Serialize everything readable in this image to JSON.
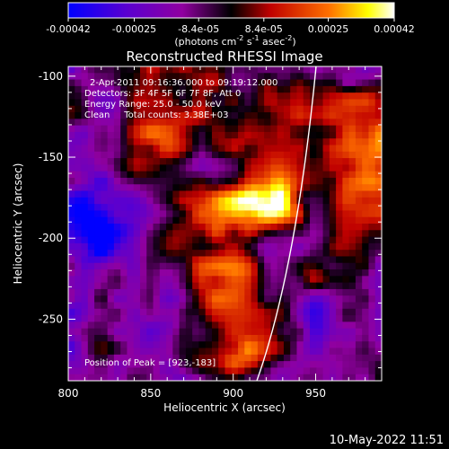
{
  "chart_data": {
    "type": "heatmap",
    "title": "Reconstructed RHESSI Image",
    "xlabel": "Heliocentric X (arcsec)",
    "ylabel": "Heliocentric Y (arcsec)",
    "xlim": [
      800,
      990
    ],
    "ylim": [
      -288,
      -94
    ],
    "x_ticks": [
      "800",
      "850",
      "900",
      "950"
    ],
    "y_ticks": [
      "-100",
      "-150",
      "-200",
      "-250"
    ],
    "colorbar": {
      "range": [
        -0.00042,
        0.00042
      ],
      "ticks": [
        "-0.00042",
        "-0.00025",
        "-8.4e-05",
        "8.4e-05",
        "0.00025",
        "0.00042"
      ],
      "unit_prefix": "(photons cm",
      "unit_exp1": "-2",
      "unit_mid": " s",
      "unit_exp2": "-1",
      "unit_mid2": " asec",
      "unit_exp3": "-2",
      "unit_suffix": ")"
    },
    "info_lines": [
      "2-Apr-2011 09:16:36.000 to 09:19:12.000",
      "Detectors: 3F 4F 5F 6F 7F 8F, Att 0",
      "Energy Range: 25.0 - 50.0 keV",
      "Clean     Total counts: 3.38E+03"
    ],
    "peak_label": "Position of Peak = [923,-183]",
    "peak": [
      923,
      -183
    ],
    "limb": "white solar limb arc crossing from bottom (~915,-288) to top (~963,-94)",
    "colormap": [
      "#0000ff",
      "#5a00d0",
      "#9000a0",
      "#000000",
      "#c00000",
      "#ff7000",
      "#ffff00",
      "#ffffff"
    ],
    "grid": false
  },
  "footer": {
    "timestamp": "10-May-2022 11:51"
  }
}
